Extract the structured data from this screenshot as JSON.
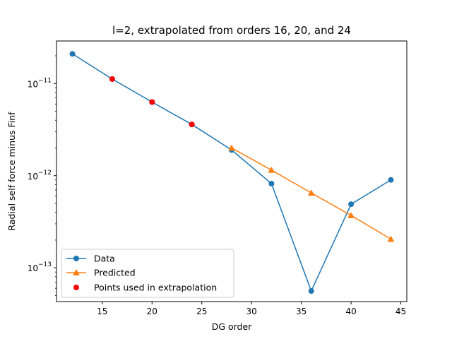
{
  "chart_data": {
    "type": "line",
    "title": "l=2, extrapolated from orders 16, 20, and 24",
    "xlabel": "DG order",
    "ylabel": "Radial self force minus Finf",
    "xlim": [
      10.4,
      45.6
    ],
    "ylim": [
      4.3e-14,
      2.9e-11
    ],
    "yscale": "log",
    "grid": false,
    "legend_position": "lower-left",
    "x_ticks": [
      15,
      20,
      25,
      30,
      35,
      40,
      45
    ],
    "x_tick_labels": [
      "15",
      "20",
      "25",
      "30",
      "35",
      "40",
      "45"
    ],
    "y_ticks": [
      1e-11,
      1e-12,
      1e-13
    ],
    "y_tick_labels": [
      {
        "base": "10",
        "exp": "−11"
      },
      {
        "base": "10",
        "exp": "−12"
      },
      {
        "base": "10",
        "exp": "−13"
      }
    ],
    "series": [
      {
        "name": "Data",
        "color": "#1f77b4",
        "marker": "circle",
        "line": true,
        "x": [
          12,
          16,
          20,
          24,
          28,
          32,
          36,
          40,
          44
        ],
        "y": [
          2.1e-11,
          1.12e-11,
          6.3e-12,
          3.6e-12,
          1.9e-12,
          8.2e-13,
          5.6e-14,
          4.9e-13,
          9e-13
        ]
      },
      {
        "name": "Predicted",
        "color": "#ff7f0e",
        "marker": "triangle",
        "line": true,
        "x": [
          28,
          32,
          36,
          40,
          44
        ],
        "y": [
          2e-12,
          1.15e-12,
          6.5e-13,
          3.7e-13,
          2.05e-13
        ]
      },
      {
        "name": "Points used in extrapolation",
        "color": "#ff0000",
        "marker": "circle",
        "line": false,
        "x": [
          16,
          20,
          24
        ],
        "y": [
          1.12e-11,
          6.3e-12,
          3.6e-12
        ]
      }
    ]
  }
}
